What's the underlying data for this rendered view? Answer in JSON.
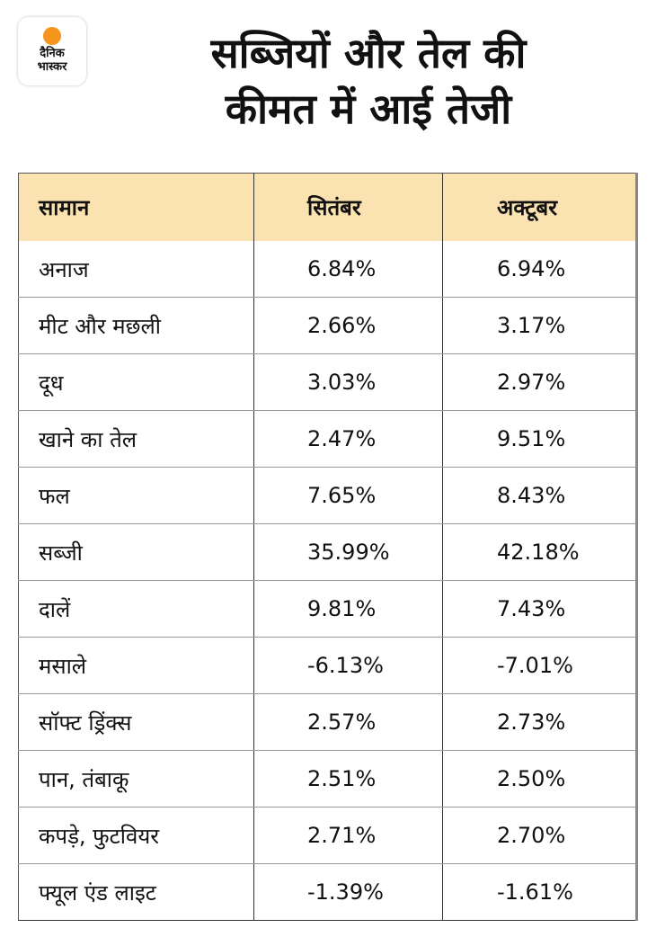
{
  "logo": {
    "line1": "दैनिक",
    "line2": "भास्कर",
    "accent": "#f7941d"
  },
  "title": {
    "line1": "सब्जियों और तेल की",
    "line2": "कीमत में आई तेजी"
  },
  "table": {
    "headers": [
      "सामान",
      "सितंबर",
      "अक्टूबर"
    ],
    "header_bg": "#fbe3b1",
    "rows": [
      [
        "अनाज",
        "6.84%",
        "6.94%"
      ],
      [
        "मीट और मछली",
        "2.66%",
        "3.17%"
      ],
      [
        "दूध",
        "3.03%",
        "2.97%"
      ],
      [
        "खाने का तेल",
        "2.47%",
        "9.51%"
      ],
      [
        "फल",
        "7.65%",
        "8.43%"
      ],
      [
        "सब्जी",
        "35.99%",
        "42.18%"
      ],
      [
        "दालें",
        "9.81%",
        "7.43%"
      ],
      [
        "मसाले",
        "-6.13%",
        "-7.01%"
      ],
      [
        "सॉफ्ट ड्रिंक्स",
        "2.57%",
        "2.73%"
      ],
      [
        "पान, तंबाकू",
        "2.51%",
        "2.50%"
      ],
      [
        "कपड़े, फुटवियर",
        "2.71%",
        "2.70%"
      ],
      [
        "फ्यूल एंड लाइट",
        "-1.39%",
        "-1.61%"
      ]
    ]
  }
}
